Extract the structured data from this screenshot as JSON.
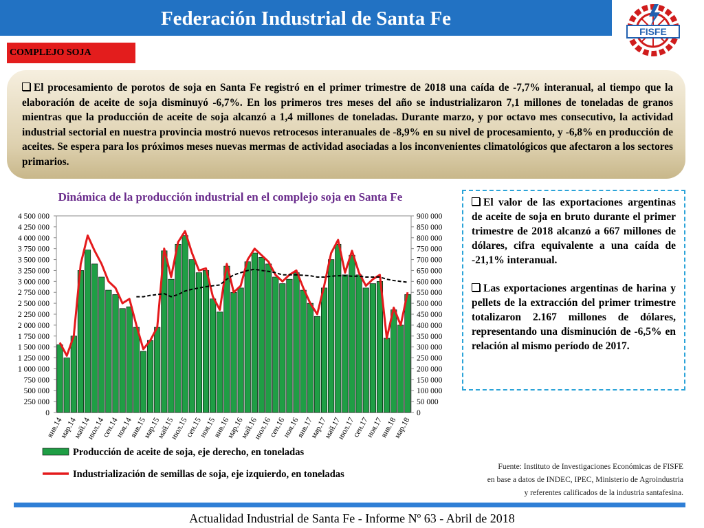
{
  "header": {
    "title": "Federación Industrial de Santa Fe",
    "logo": "FISFE"
  },
  "section_label": "COMPLEJO SOJA",
  "summary": "El procesamiento de porotos de soja en Santa Fe registró en el primer trimestre de 2018 una caída de -7,7% interanual, al tiempo que la elaboración de aceite de soja disminuyó -6,7%. En los primeros tres meses del año se industrializaron 7,1 millones de toneladas de granos mientras que la producción de aceite de soja alcanzó a 1,4 millones de toneladas. Durante marzo, y por octavo mes consecutivo, la actividad industrial sectorial en nuestra provincia mostró nuevos retrocesos interanuales de -8,9% en su nivel de procesamiento, y -6,8% en producción de aceites. Se espera para los próximos meses nuevas mermas de actividad asociadas a los inconvenientes climatológicos que afectaron a los sectores primarios.",
  "chart_data": {
    "type": "combo",
    "title": "Dinámica de la producción industrial en el complejo soja en Santa Fe",
    "categories": [
      "янв.14",
      null,
      "мар.14",
      null,
      "май.14",
      null,
      "июл.14",
      null,
      "сен.14",
      null,
      "ноя.14",
      null,
      "янв.15",
      null,
      "мар.15",
      null,
      "май.15",
      null,
      "июл.15",
      null,
      "сен.15",
      null,
      "ноя.15",
      null,
      "янв.16",
      null,
      "мар.16",
      null,
      "май.16",
      null,
      "июл.16",
      null,
      "сен.16",
      null,
      "ноя.16",
      null,
      "янв.17",
      null,
      "мар.17",
      null,
      "май.17",
      null,
      "июл.17",
      null,
      "сен.17",
      null,
      "ноя.17",
      null,
      "янв.18",
      null,
      "мар.18"
    ],
    "series": [
      {
        "name": "Producción de aceite de soja, eje derecho, en toneladas",
        "type": "bar",
        "axis": "y2",
        "color": "#1f9e45",
        "values": [
          310000,
          250000,
          350000,
          650000,
          744000,
          680000,
          620000,
          560000,
          540000,
          476000,
          484000,
          390000,
          280000,
          330000,
          390000,
          740000,
          610000,
          770000,
          810000,
          700000,
          640000,
          650000,
          520000,
          460000,
          670000,
          550000,
          570000,
          690000,
          730000,
          710000,
          680000,
          620000,
          590000,
          610000,
          640000,
          560000,
          500000,
          440000,
          570000,
          700000,
          770000,
          630000,
          720000,
          630000,
          570000,
          590000,
          600000,
          340000,
          470000,
          400000,
          540000
        ]
      },
      {
        "name": "Industrialización de semillas de soja, eje izquierdo, en toneladas",
        "type": "line",
        "axis": "y",
        "color": "#e41a1c",
        "values": [
          1600000,
          1300000,
          1750000,
          3400000,
          4050000,
          3700000,
          3400000,
          3000000,
          2850000,
          2500000,
          2600000,
          2000000,
          1450000,
          1650000,
          1950000,
          3750000,
          3100000,
          3900000,
          4150000,
          3650000,
          3250000,
          3300000,
          2650000,
          2350000,
          3400000,
          2750000,
          2900000,
          3500000,
          3750000,
          3600000,
          3450000,
          3150000,
          3000000,
          3150000,
          3250000,
          2850000,
          2500000,
          2250000,
          2900000,
          3650000,
          3950000,
          3200000,
          3700000,
          3200000,
          2900000,
          3050000,
          3150000,
          1700000,
          2400000,
          2000000,
          2750000
        ]
      },
      {
        "type": "line",
        "axis": "y",
        "color": "#000000",
        "dashed": true,
        "values": [
          null,
          null,
          null,
          null,
          null,
          null,
          null,
          null,
          null,
          null,
          null,
          2650000,
          2650000,
          2680000,
          2700000,
          2720000,
          2650000,
          2700000,
          2780000,
          2820000,
          2850000,
          2880000,
          2900000,
          2920000,
          3050000,
          3150000,
          3200000,
          3250000,
          3280000,
          3250000,
          3230000,
          3200000,
          3150000,
          3150000,
          3150000,
          3140000,
          3130000,
          3100000,
          3100000,
          3120000,
          3130000,
          3130000,
          3120000,
          3120000,
          3100000,
          3100000,
          3100000,
          3050000,
          3020000,
          3000000,
          2980000
        ]
      }
    ],
    "ylim": [
      0,
      4500000
    ],
    "yticks": [
      0,
      {
        "value": 250000,
        "label": "250 000"
      },
      {
        "value": 500000,
        "label": "500 000"
      },
      {
        "value": 750000,
        "label": "750 000"
      },
      {
        "value": 1000000,
        "label": "1 000 000"
      },
      {
        "value": 1250000,
        "label": "1 250 000"
      },
      {
        "value": 1500000,
        "label": "1 500 000"
      },
      {
        "value": 1750000,
        "label": "1 750 000"
      },
      {
        "value": 2000000,
        "label": "2 000 000"
      },
      {
        "value": 2250000,
        "label": "2 250 000"
      },
      {
        "value": 2500000,
        "label": "2 500 000"
      },
      {
        "value": 2750000,
        "label": "2 750 000"
      },
      {
        "value": 3000000,
        "label": "3 000 000"
      },
      {
        "value": 3250000,
        "label": "3 250 000"
      },
      {
        "value": 3500000,
        "label": "3 500 000"
      },
      {
        "value": 3750000,
        "label": "3 750 000"
      },
      {
        "value": 4000000,
        "label": "4 000 000"
      },
      {
        "value": 4250000,
        "label": "4 250 000"
      },
      {
        "value": 4500000,
        "label": "4 500 000"
      }
    ],
    "y2lim": [
      0,
      900000
    ],
    "y2ticks": [
      0,
      {
        "value": 50000,
        "label": "50 000"
      },
      {
        "value": 100000,
        "label": "100 000"
      },
      {
        "value": 150000,
        "label": "150 000"
      },
      {
        "value": 200000,
        "label": "200 000"
      },
      {
        "value": 250000,
        "label": "250 000"
      },
      {
        "value": 300000,
        "label": "300 000"
      },
      {
        "value": 350000,
        "label": "350 000"
      },
      {
        "value": 400000,
        "label": "400 000"
      },
      {
        "value": 450000,
        "label": "450 000"
      },
      {
        "value": 500000,
        "label": "500 000"
      },
      {
        "value": 550000,
        "label": "550 000"
      },
      {
        "value": 600000,
        "label": "600 000"
      },
      {
        "value": 650000,
        "label": "650 000"
      },
      {
        "value": 700000,
        "label": "700 000"
      },
      {
        "value": 750000,
        "label": "750 000"
      },
      {
        "value": 800000,
        "label": "800 000"
      },
      {
        "value": 850000,
        "label": "850 000"
      },
      {
        "value": 900000,
        "label": "900 000"
      }
    ],
    "grid": false,
    "legend": "bottom"
  },
  "notes": [
    "El valor de las exportaciones argentinas de aceite de soja en bruto durante el primer trimestre de 2018 alcanzó a 667 millones de dólares, cifra equivalente a una caída de -21,1% interanual.",
    "Las exportaciones argentinas de harina y pellets de la extracción del primer trimestre totalizaron 2.167 millones de dólares, representando una disminución de -6,5% en relación al mismo período de 2017."
  ],
  "source": [
    "Fuente: Instituto de Investigaciones Económicas de FISFE",
    "en base a datos de INDEC, IPEC, Ministerio de Agroindustria",
    "y referentes calificados de la industria santafesina."
  ],
  "footer": "Actualidad Industrial de Santa Fe - Informe Nº 63 - Abril de 2018"
}
